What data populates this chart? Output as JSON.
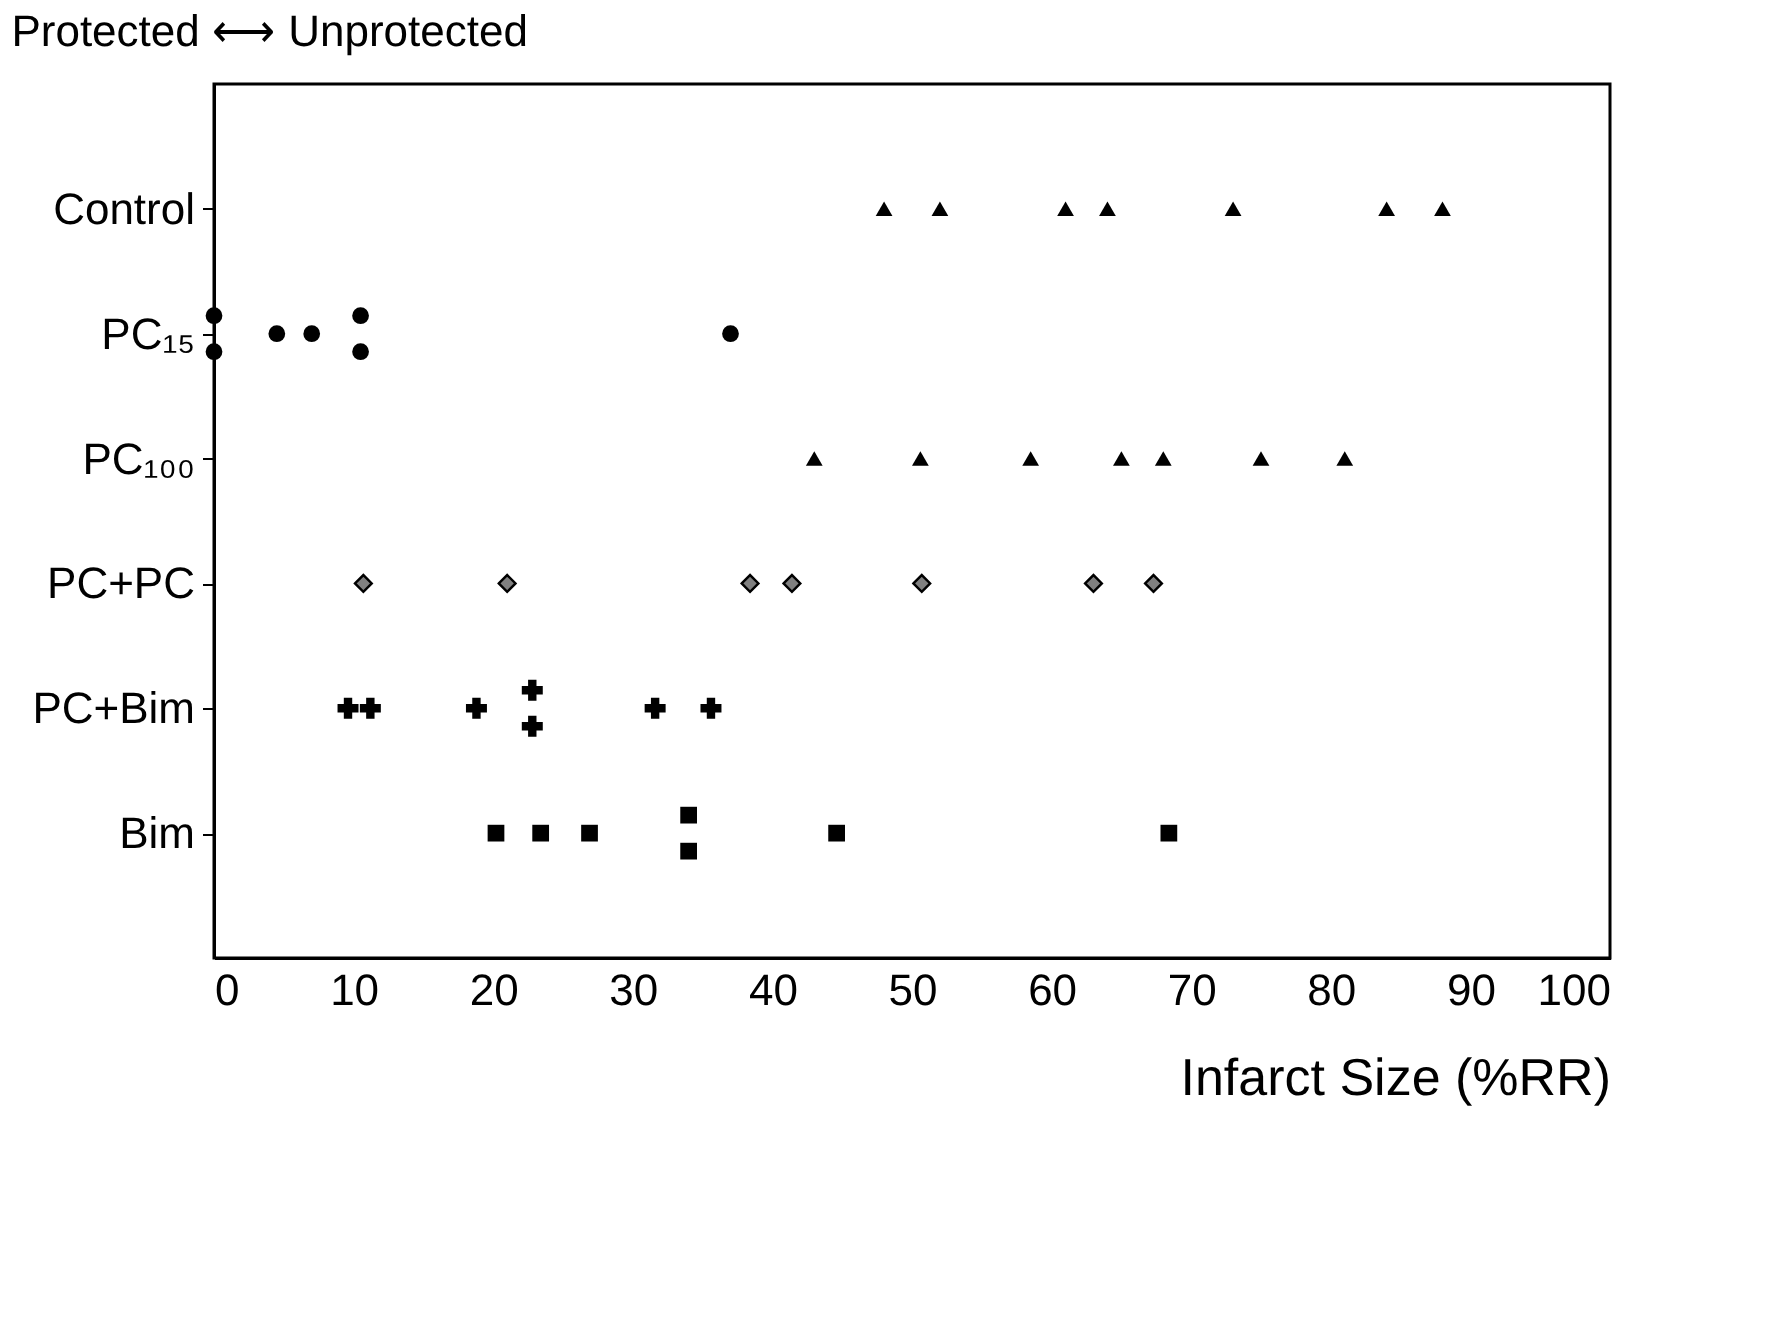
{
  "chart_data": {
    "type": "scatter",
    "orientation": "horizontal",
    "title": "Protected ⟷ Unprotected",
    "xlabel": "Infarct Size (%RR)",
    "categories": [
      "Control",
      "PC₁₅",
      "PC₁₀₀",
      "PC+PC",
      "PC+Bim",
      "Bim"
    ],
    "xlim": [
      0,
      100
    ],
    "xticks": [
      0,
      10,
      20,
      30,
      40,
      50,
      60,
      70,
      80,
      90,
      100
    ],
    "grid": false,
    "legend": false,
    "series": [
      {
        "marker": "triangle",
        "color": "#000000",
        "x": [
          "Control",
          "Control",
          "Control",
          "Control",
          "Control",
          "Control",
          "Control"
        ],
        "values": [
          48,
          52,
          61,
          64,
          73,
          84,
          88
        ]
      },
      {
        "marker": "circle",
        "color": "#000000",
        "x": [
          "PC₁₅",
          "PC₁₅",
          "PC₁₅",
          "PC₁₅",
          "PC₁₅",
          "PC₁₅",
          "PC₁₅"
        ],
        "values": [
          0,
          0,
          4.5,
          7,
          10.5,
          10.5,
          37
        ]
      },
      {
        "marker": "triangle",
        "color": "#000000",
        "x": [
          "PC₁₀₀",
          "PC₁₀₀",
          "PC₁₀₀",
          "PC₁₀₀",
          "PC₁₀₀",
          "PC₁₀₀",
          "PC₁₀₀"
        ],
        "values": [
          43,
          50.6,
          58.5,
          65,
          68,
          75,
          81
        ]
      },
      {
        "marker": "diamond",
        "color": "#808080",
        "x": [
          "PC+PC",
          "PC+PC",
          "PC+PC",
          "PC+PC",
          "PC+PC",
          "PC+PC",
          "PC+PC"
        ],
        "values": [
          10.7,
          21,
          38.4,
          41.4,
          50.7,
          63,
          67.3
        ]
      },
      {
        "marker": "cross",
        "color": "#000000",
        "x": [
          "PC+Bim",
          "PC+Bim",
          "PC+Bim",
          "PC+Bim",
          "PC+Bim",
          "PC+Bim",
          "PC+Bim"
        ],
        "values": [
          9.6,
          11.2,
          18.8,
          22.8,
          22.8,
          31.6,
          35.6
        ]
      },
      {
        "marker": "square",
        "color": "#000000",
        "x": [
          "Bim",
          "Bim",
          "Bim",
          "Bim",
          "Bim",
          "Bim",
          "Bim"
        ],
        "values": [
          20.2,
          23.4,
          26.9,
          34,
          34,
          44.6,
          68.4
        ]
      }
    ]
  }
}
